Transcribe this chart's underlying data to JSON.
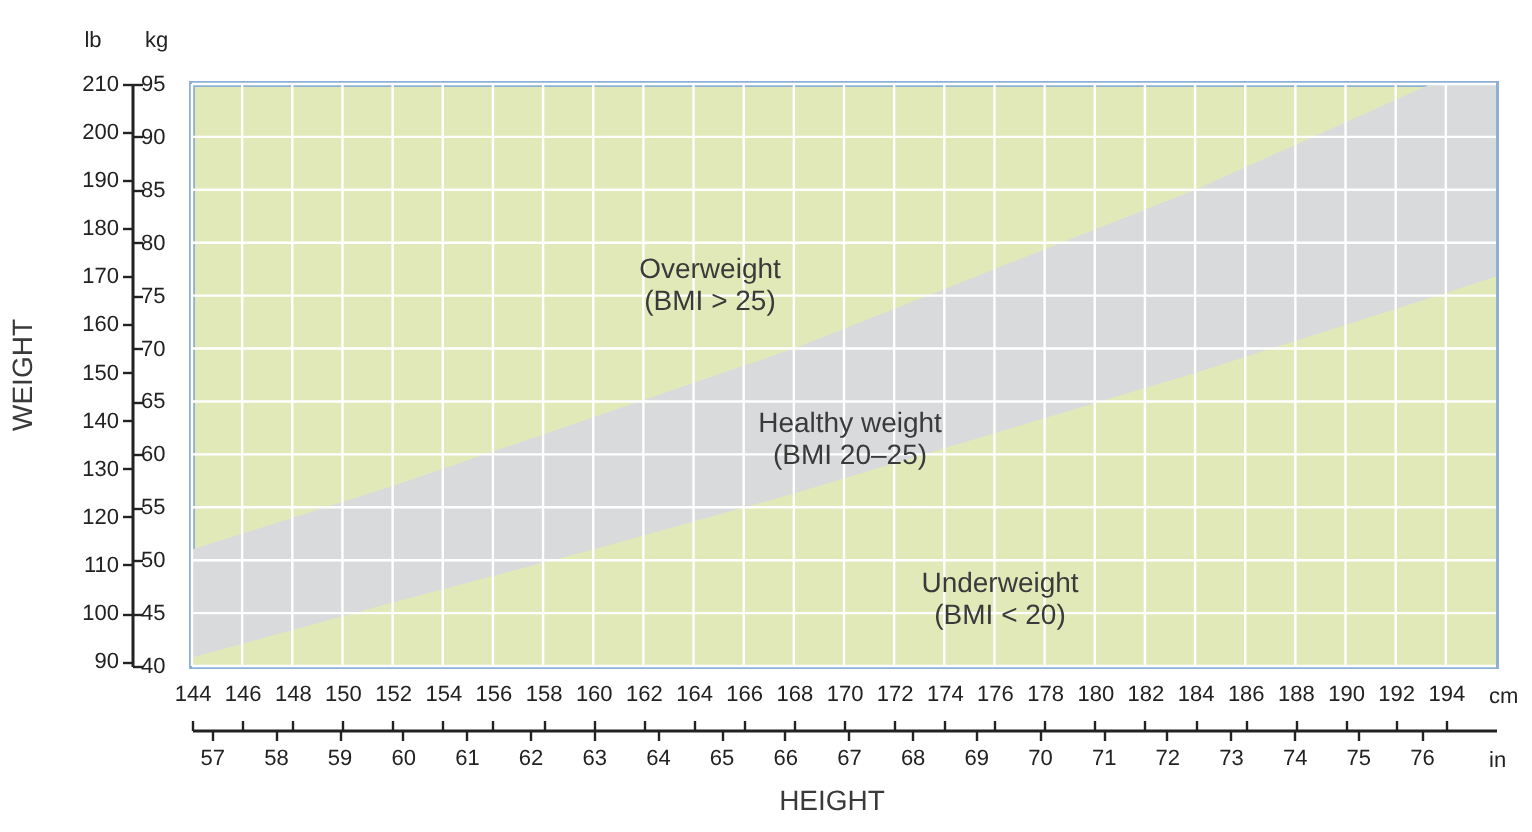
{
  "chart_data": {
    "type": "area",
    "x": [
      144,
      152,
      160,
      168,
      176,
      184,
      193.4,
      196
    ],
    "series": [
      {
        "type": "area",
        "color": "#d9dadc",
        "values": [
          51,
          57,
          63.5,
          70,
          77.5,
          85,
          95,
          95
        ]
      },
      {
        "type": "area",
        "color": "#e2e9b9",
        "values": [
          40.8,
          46,
          51,
          56.3,
          62,
          67.7,
          74.8,
          76.8
        ]
      }
    ],
    "xlabel": "cm",
    "x2label": "in",
    "ylabel": "kg",
    "y2label": "lb",
    "xlim": [
      144,
      196
    ],
    "xticks": [
      144,
      146,
      148,
      150,
      152,
      154,
      156,
      158,
      160,
      162,
      164,
      166,
      168,
      170,
      172,
      174,
      176,
      178,
      180,
      182,
      184,
      186,
      188,
      190,
      192,
      194
    ],
    "x2lim": [
      56.69,
      77.17
    ],
    "x2ticks": [
      57,
      58,
      59,
      60,
      61,
      62,
      63,
      64,
      65,
      66,
      67,
      68,
      69,
      70,
      71,
      72,
      73,
      74,
      75,
      76
    ],
    "ylim": [
      40,
      95
    ],
    "yticks": [
      40,
      45,
      50,
      55,
      60,
      65,
      70,
      75,
      80,
      85,
      90,
      95
    ],
    "y2lim": [
      89,
      210
    ],
    "y2ticks": [
      90,
      100,
      110,
      120,
      130,
      140,
      150,
      160,
      170,
      180,
      190,
      200,
      210
    ],
    "grid": true,
    "annotations": [
      "WEIGHT",
      "HEIGHT",
      "Overweight\n(BMI > 25)",
      "Healthy weight\n(BMI 20–25)",
      "Underweight\n(BMI < 20)"
    ]
  }
}
